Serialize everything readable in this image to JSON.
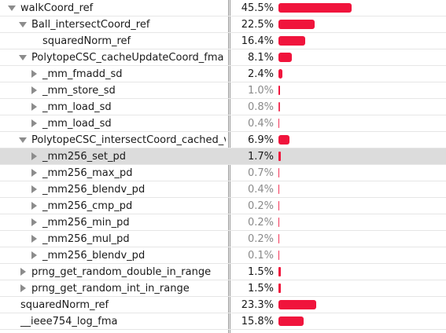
{
  "colors": {
    "bar": "#f0143c",
    "selected_row": "#dcdcdc",
    "faint_text": "#8a8a8a"
  },
  "rows": [
    {
      "name": "walkCoord_ref",
      "pct": "45.5%",
      "value": 45.5,
      "depth": 0,
      "toggle": "expanded"
    },
    {
      "name": "Ball_intersectCoord_ref",
      "pct": "22.5%",
      "value": 22.5,
      "depth": 1,
      "toggle": "expanded"
    },
    {
      "name": "squaredNorm_ref",
      "pct": "16.4%",
      "value": 16.4,
      "depth": 2,
      "toggle": "none"
    },
    {
      "name": "PolytopeCSC_cacheUpdateCoord_fma",
      "pct": "8.1%",
      "value": 8.1,
      "depth": 1,
      "toggle": "expanded"
    },
    {
      "name": "_mm_fmadd_sd",
      "pct": "2.4%",
      "value": 2.4,
      "depth": 2,
      "toggle": "collapsed"
    },
    {
      "name": "_mm_store_sd",
      "pct": "1.0%",
      "value": 1.0,
      "depth": 2,
      "toggle": "collapsed",
      "faint": true
    },
    {
      "name": "_mm_load_sd",
      "pct": "0.8%",
      "value": 0.8,
      "depth": 2,
      "toggle": "collapsed",
      "faint": true
    },
    {
      "name": "_mm_load_sd",
      "pct": "0.4%",
      "value": 0.4,
      "depth": 2,
      "toggle": "collapsed",
      "faint": true
    },
    {
      "name": "PolytopeCSC_intersectCoord_cached_vec",
      "pct": "6.9%",
      "value": 6.9,
      "depth": 1,
      "toggle": "expanded"
    },
    {
      "name": "_mm256_set_pd",
      "pct": "1.7%",
      "value": 1.7,
      "depth": 2,
      "toggle": "collapsed",
      "selected": true
    },
    {
      "name": "_mm256_max_pd",
      "pct": "0.7%",
      "value": 0.7,
      "depth": 2,
      "toggle": "collapsed",
      "faint": true
    },
    {
      "name": "_mm256_blendv_pd",
      "pct": "0.4%",
      "value": 0.4,
      "depth": 2,
      "toggle": "collapsed",
      "faint": true
    },
    {
      "name": "_mm256_cmp_pd",
      "pct": "0.2%",
      "value": 0.2,
      "depth": 2,
      "toggle": "collapsed",
      "faint": true
    },
    {
      "name": "_mm256_min_pd",
      "pct": "0.2%",
      "value": 0.2,
      "depth": 2,
      "toggle": "collapsed",
      "faint": true
    },
    {
      "name": "_mm256_mul_pd",
      "pct": "0.2%",
      "value": 0.2,
      "depth": 2,
      "toggle": "collapsed",
      "faint": true
    },
    {
      "name": "_mm256_blendv_pd",
      "pct": "0.1%",
      "value": 0.1,
      "depth": 2,
      "toggle": "collapsed",
      "faint": true
    },
    {
      "name": "prng_get_random_double_in_range",
      "pct": "1.5%",
      "value": 1.5,
      "depth": 1,
      "toggle": "collapsed"
    },
    {
      "name": "prng_get_random_int_in_range",
      "pct": "1.5%",
      "value": 1.5,
      "depth": 1,
      "toggle": "collapsed"
    },
    {
      "name": "squaredNorm_ref",
      "pct": "23.3%",
      "value": 23.3,
      "depth": 0,
      "toggle": "none"
    },
    {
      "name": "__ieee754_log_fma",
      "pct": "15.8%",
      "value": 15.8,
      "depth": 0,
      "toggle": "none"
    }
  ]
}
